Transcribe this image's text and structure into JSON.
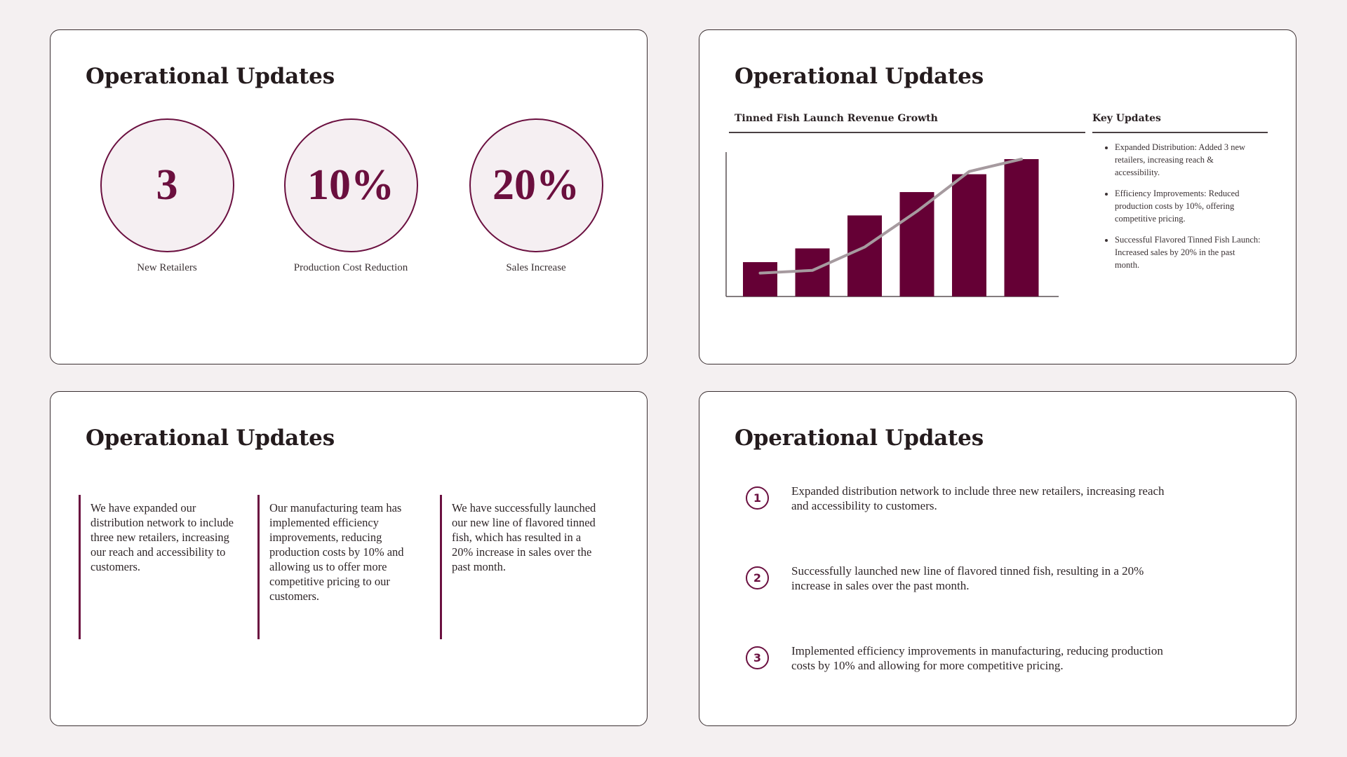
{
  "slides": [
    {
      "title": "Operational Updates",
      "stats": [
        {
          "value": "3",
          "label": "New Retailers"
        },
        {
          "value": "10%",
          "label": "Production Cost Reduction"
        },
        {
          "value": "20%",
          "label": "Sales Increase"
        }
      ]
    },
    {
      "title": "Operational Updates",
      "chart_title": "Tinned Fish Launch Revenue Growth",
      "updates_title": "Key Updates",
      "updates": [
        "Expanded Distribution: Added 3 new retailers, increasing reach & accessibility.",
        "Efficiency Improvements: Reduced production costs by 10%, offering competitive pricing.",
        "Successful Flavored Tinned Fish Launch: Increased sales by 20% in the past month."
      ]
    },
    {
      "title": "Operational Updates",
      "columns": [
        "We have expanded our distribution network to include three new retailers, increasing our reach and accessibility to customers.",
        "Our manufacturing team has implemented efficiency improvements, reducing production costs by 10% and allowing us to offer more competitive pricing to our customers.",
        "We have successfully launched our new line of flavored tinned fish, which has resulted in a 20% increase in sales over the past month."
      ]
    },
    {
      "title": "Operational Updates",
      "items": [
        {
          "number": "1",
          "text": "Expanded distribution network to include three new retailers, increasing reach and accessibility to customers."
        },
        {
          "number": "2",
          "text": "Successfully launched new line of flavored tinned fish, resulting in a 20% increase in sales over the past month."
        },
        {
          "number": "3",
          "text": "Implemented efficiency improvements in manufacturing, reducing production costs by 10% and allowing for more competitive pricing."
        }
      ]
    }
  ],
  "chart_data": {
    "type": "bar",
    "title": "Tinned Fish Launch Revenue Growth",
    "categories": [
      "",
      "",
      "",
      "",
      "",
      ""
    ],
    "series": [
      {
        "kind": "bar",
        "values": [
          25,
          35,
          59,
          76,
          89,
          100
        ]
      },
      {
        "kind": "line",
        "values": [
          17,
          19,
          36,
          62,
          91,
          100
        ]
      }
    ],
    "ylim": [
      0,
      100
    ],
    "grid": false,
    "legend": "none"
  },
  "colors": {
    "accent": "#6b1040",
    "bar": "#650035",
    "trend_line": "#a69a9f",
    "background": "#f4f0f1"
  }
}
